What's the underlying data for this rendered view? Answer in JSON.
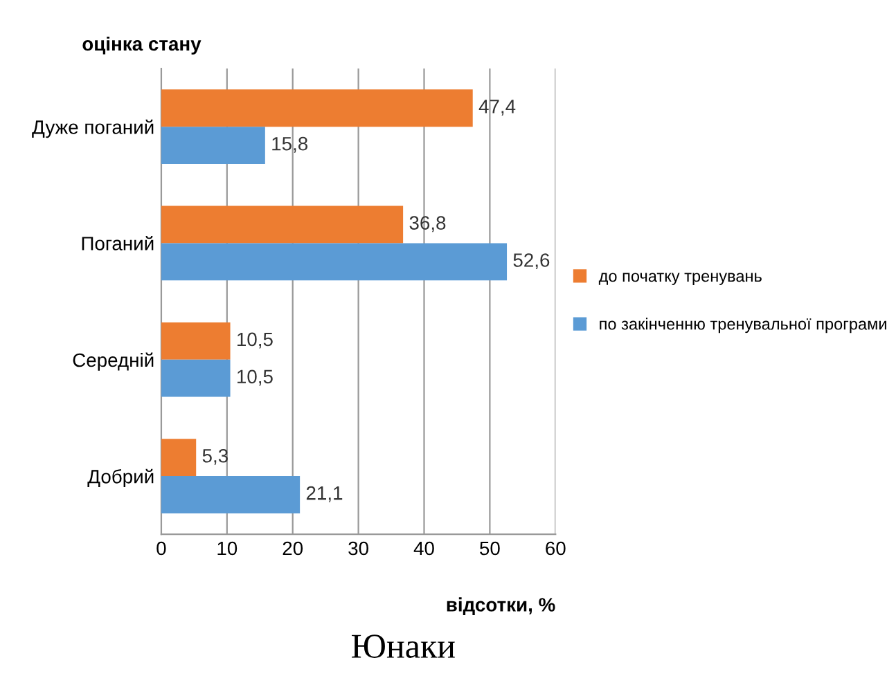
{
  "chart_data": {
    "type": "bar",
    "orientation": "horizontal",
    "title": "Юнаки",
    "xlabel": "відсотки, %",
    "ylabel": "оцінка стану",
    "categories": [
      "Дуже поганий",
      "Поганий",
      "Середній",
      "Добрий"
    ],
    "series": [
      {
        "name": "до початку тренувань",
        "color": "#ed7d31",
        "values": [
          47.4,
          36.8,
          10.5,
          5.3
        ],
        "value_labels": [
          "47,4",
          "36,8",
          "10,5",
          "5,3"
        ]
      },
      {
        "name": "по закінченню тренувальної програми",
        "color": "#5b9bd5",
        "values": [
          15.8,
          52.6,
          10.5,
          21.1
        ],
        "value_labels": [
          "15,8",
          "52,6",
          "10,5",
          "21,1"
        ]
      }
    ],
    "xlim": [
      0,
      60
    ],
    "xticks": [
      0,
      10,
      20,
      30,
      40,
      50,
      60
    ],
    "grid": "x",
    "legend": "right"
  }
}
